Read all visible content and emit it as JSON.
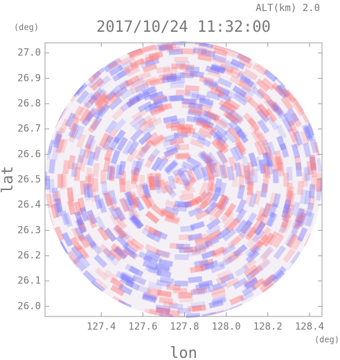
{
  "chart_data": {
    "type": "map",
    "title": "2017/10/24 11:32:00",
    "annotation": "ALT(km)  2.0",
    "y_unit": "(deg)",
    "x_unit": "(deg)",
    "xlabel": "lon",
    "ylabel": "lat",
    "xlim": [
      127.13,
      128.46
    ],
    "ylim": [
      25.96,
      27.04
    ],
    "xticks": [
      127.4,
      127.6,
      127.8,
      {
        "value": 128.0,
        "label": "128.0"
      },
      128.2,
      128.4
    ],
    "yticks": [
      {
        "value": 26.0,
        "label": "26.0"
      },
      26.1,
      26.2,
      26.3,
      26.4,
      26.5,
      26.6,
      26.7,
      26.8,
      26.9,
      {
        "value": 27.0,
        "label": "27.0"
      }
    ]
  }
}
